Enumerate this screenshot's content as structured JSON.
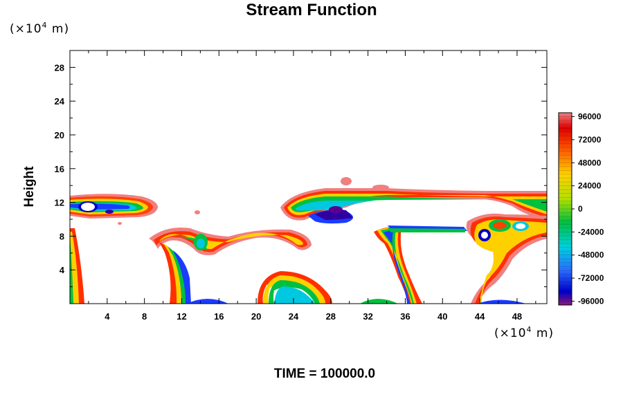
{
  "chart_data": {
    "type": "heatmap",
    "title": "Stream Function",
    "ylabel": "Height",
    "y_unit": {
      "base": "(×10",
      "exp": "4",
      "rest": " m)"
    },
    "x_unit": {
      "base": "(×10",
      "exp": "4",
      "rest": " m)"
    },
    "footer": "TIME = 100000.0",
    "xlim": [
      0,
      51.2
    ],
    "ylim": [
      0,
      30
    ],
    "x_ticks": [
      4,
      8,
      12,
      16,
      20,
      24,
      28,
      32,
      36,
      40,
      44,
      48
    ],
    "y_ticks": [
      4,
      8,
      12,
      16,
      20,
      24,
      28
    ],
    "colorbar": {
      "min": -100000,
      "max": 100000,
      "labels": [
        96000,
        72000,
        48000,
        24000,
        0,
        -24000,
        -48000,
        -72000,
        -96000
      ]
    }
  }
}
